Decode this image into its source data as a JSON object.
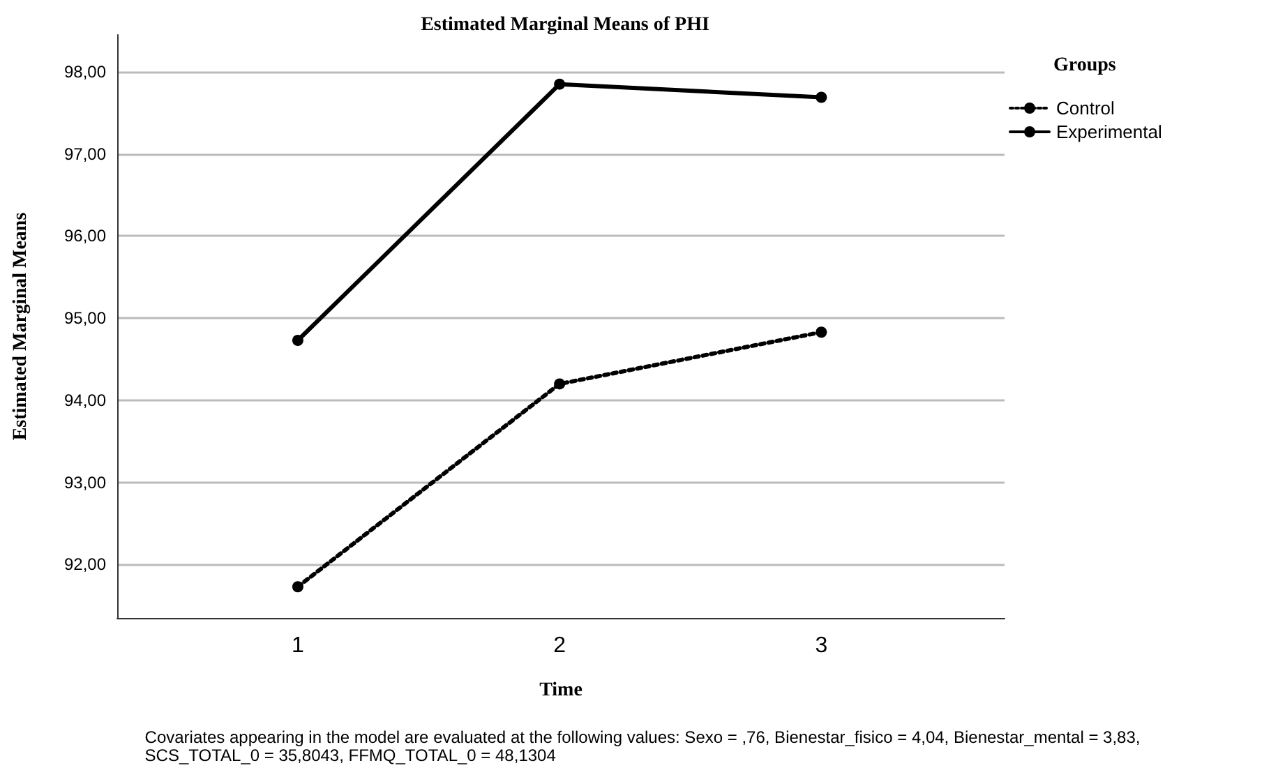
{
  "chart_data": {
    "type": "line",
    "title": "Estimated Marginal Means of PHI",
    "xlabel": "Time",
    "ylabel": "Estimated Marginal Means",
    "legend_title": "Groups",
    "x": [
      1,
      2,
      3
    ],
    "xlim": [
      0.31,
      3.7
    ],
    "xticks": [
      1,
      2,
      3
    ],
    "ylim": [
      91.35,
      98.45
    ],
    "yticks": [
      {
        "value": 92,
        "label": "92,00"
      },
      {
        "value": 93,
        "label": "93,00"
      },
      {
        "value": 94,
        "label": "94,00"
      },
      {
        "value": 95,
        "label": "95,00"
      },
      {
        "value": 96,
        "label": "96,00"
      },
      {
        "value": 97,
        "label": "97,00"
      },
      {
        "value": 98,
        "label": "98,00"
      }
    ],
    "series": [
      {
        "name": "Control",
        "color": "#000000",
        "values": [
          91.73,
          94.2,
          94.83
        ],
        "line_style": "dotted"
      },
      {
        "name": "Experimental",
        "color": "#000000",
        "values": [
          94.73,
          97.85,
          97.69
        ],
        "line_style": "solid"
      }
    ],
    "grid": "y",
    "legend": "top right",
    "marker": "circle",
    "annotations": [
      "Covariates appearing in the model are evaluated at the following values: Sexo = ,76, Bienestar_fisico = 4,04, Bienestar_mental = 3,83,\nSCS_TOTAL_0 = 35,8043, FFMQ_TOTAL_0 = 48,1304"
    ]
  }
}
